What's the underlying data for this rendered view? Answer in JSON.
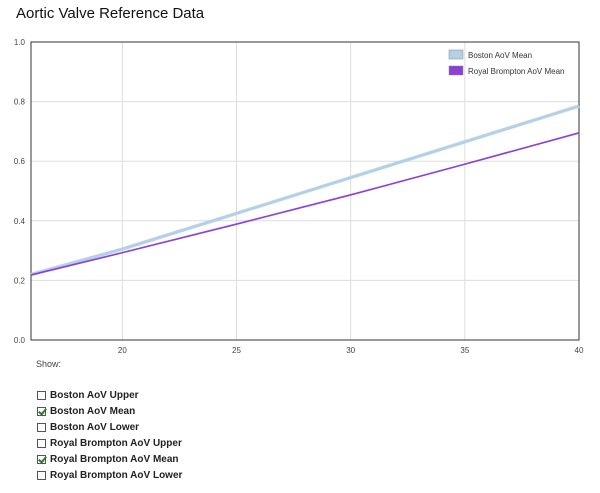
{
  "page": {
    "title": "Aortic Valve Reference Data",
    "show_label": "Show:"
  },
  "toggles": [
    {
      "label": "Boston AoV Upper",
      "checked": false
    },
    {
      "label": "Boston AoV Mean",
      "checked": true
    },
    {
      "label": "Boston AoV Lower",
      "checked": false
    },
    {
      "label": "Royal Brompton AoV Upper",
      "checked": false
    },
    {
      "label": "Royal Brompton AoV Mean",
      "checked": true
    },
    {
      "label": "Royal Brompton AoV Lower",
      "checked": false
    }
  ],
  "chart_data": {
    "type": "line",
    "title": "",
    "xlabel": "",
    "ylabel": "",
    "xlim": [
      16,
      40
    ],
    "ylim": [
      0,
      1.0
    ],
    "x_ticks": [
      "20",
      "25",
      "30",
      "35",
      "40"
    ],
    "y_ticks": [
      "0.0",
      "0.2",
      "0.4",
      "0.6",
      "0.8",
      "1.0"
    ],
    "grid": true,
    "legend_position": "top-right",
    "series": [
      {
        "name": "Boston AoV Mean",
        "color": "#b4d0e6",
        "x": [
          16,
          20,
          25,
          30,
          35,
          40
        ],
        "y": [
          0.22,
          0.305,
          0.425,
          0.545,
          0.665,
          0.785
        ]
      },
      {
        "name": "Royal Brompton AoV Mean",
        "color": "#8a3fd6",
        "x": [
          16,
          20,
          25,
          30,
          35,
          40
        ],
        "y": [
          0.218,
          0.293,
          0.389,
          0.487,
          0.59,
          0.695
        ]
      }
    ]
  }
}
